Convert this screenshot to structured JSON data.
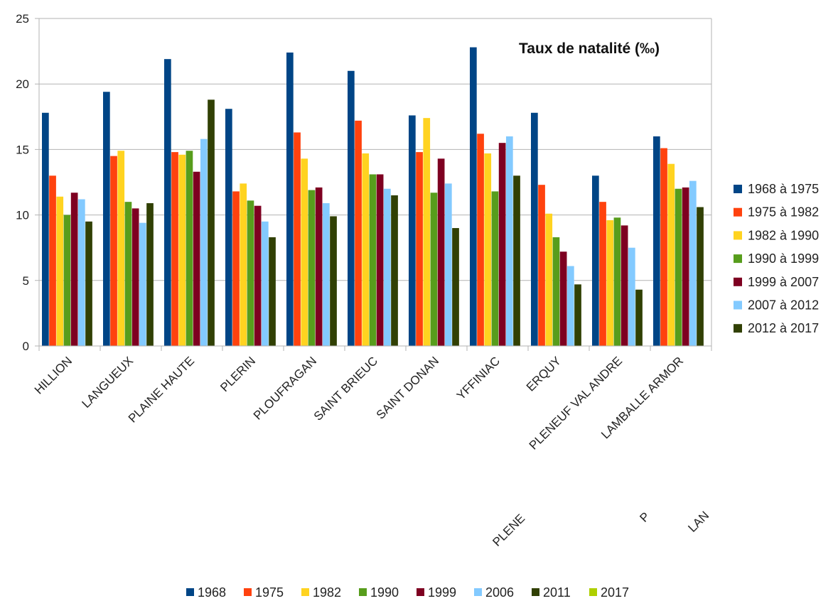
{
  "chart_data": {
    "type": "bar",
    "title": "Taux de natalité (‰)",
    "xlabel": "",
    "ylabel": "",
    "ylim": [
      0,
      25
    ],
    "yticks": [
      0,
      5,
      10,
      15,
      20,
      25
    ],
    "grid": true,
    "legend_position": "right",
    "categories": [
      "HILLION",
      "LANGUEUX",
      "PLAINE HAUTE",
      "PLERIN",
      "PLOUFRAGAN",
      "SAINT BRIEUC",
      "SAINT DONAN",
      "YFFINIAC",
      "ERQUY",
      "PLENEUF VAL ANDRE",
      "LAMBALLE ARMOR"
    ],
    "series": [
      {
        "name": "1968 à 1975",
        "color": "#004586",
        "values": [
          17.8,
          19.4,
          21.9,
          18.1,
          22.4,
          21.0,
          17.6,
          22.8,
          17.8,
          13.0,
          16.0
        ]
      },
      {
        "name": "1975 à 1982",
        "color": "#ff420e",
        "values": [
          13.0,
          14.5,
          14.8,
          11.8,
          16.3,
          17.2,
          14.8,
          16.2,
          12.3,
          11.0,
          15.1
        ]
      },
      {
        "name": "1982 à 1990",
        "color": "#ffd320",
        "values": [
          11.4,
          14.9,
          14.6,
          12.4,
          14.3,
          14.7,
          17.4,
          14.7,
          10.1,
          9.6,
          13.9
        ]
      },
      {
        "name": "1990 à 1999",
        "color": "#579d1c",
        "values": [
          10.0,
          11.0,
          14.9,
          11.1,
          11.9,
          13.1,
          11.7,
          11.8,
          8.3,
          9.8,
          12.0
        ]
      },
      {
        "name": "1999 à 2007",
        "color": "#7e0021",
        "values": [
          11.7,
          10.5,
          13.3,
          10.7,
          12.1,
          13.1,
          14.3,
          15.5,
          7.2,
          9.2,
          12.1
        ]
      },
      {
        "name": "2007 à 2012",
        "color": "#83caff",
        "values": [
          11.2,
          9.4,
          15.8,
          9.5,
          10.9,
          12.0,
          12.4,
          16.0,
          6.1,
          7.5,
          12.6
        ]
      },
      {
        "name": "2012 à 2017",
        "color": "#314004",
        "values": [
          9.5,
          10.9,
          18.8,
          8.3,
          9.9,
          11.5,
          9.0,
          13.0,
          4.7,
          4.3,
          10.6
        ]
      }
    ],
    "bottom_legend": [
      {
        "name": "1968",
        "color": "#004586"
      },
      {
        "name": "1975",
        "color": "#ff420e"
      },
      {
        "name": "1982",
        "color": "#ffd320"
      },
      {
        "name": "1990",
        "color": "#579d1c"
      },
      {
        "name": "1999",
        "color": "#7e0021"
      },
      {
        "name": "2006",
        "color": "#83caff"
      },
      {
        "name": "2011",
        "color": "#314004"
      },
      {
        "name": "2017",
        "color": "#aecf00"
      }
    ],
    "residual_labels": [
      "PLENE",
      "P",
      "LAN"
    ]
  }
}
